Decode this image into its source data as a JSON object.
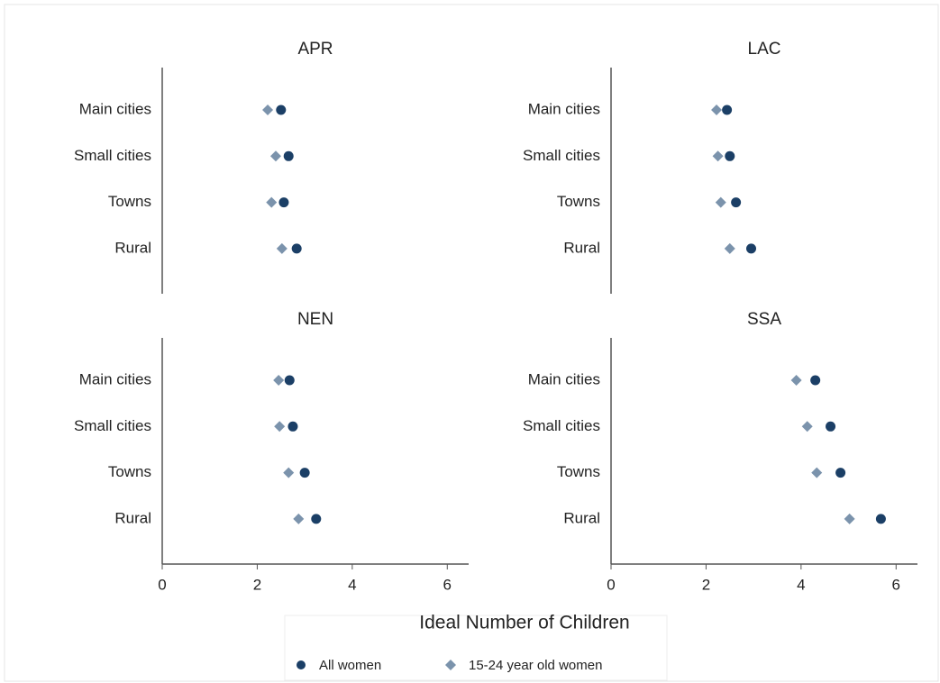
{
  "chart_data": {
    "type": "dot",
    "categories": [
      "Main cities",
      "Small cities",
      "Towns",
      "Rural"
    ],
    "series": [
      {
        "name": "All women",
        "color": "#1b3f66",
        "marker": "circle"
      },
      {
        "name": "15-24 year old women",
        "color": "#7b93ac",
        "marker": "diamond"
      }
    ],
    "panels": [
      {
        "title": "APR",
        "values": [
          [
            2.5,
            2.66,
            2.56,
            2.83
          ],
          [
            2.22,
            2.39,
            2.3,
            2.52
          ]
        ]
      },
      {
        "title": "LAC",
        "values": [
          [
            2.44,
            2.5,
            2.63,
            2.95
          ],
          [
            2.22,
            2.25,
            2.31,
            2.5
          ]
        ]
      },
      {
        "title": "NEN",
        "values": [
          [
            2.68,
            2.75,
            3.0,
            3.24
          ],
          [
            2.45,
            2.47,
            2.66,
            2.87
          ]
        ]
      },
      {
        "title": "SSA",
        "values": [
          [
            4.3,
            4.62,
            4.83,
            5.68
          ],
          [
            3.9,
            4.13,
            4.33,
            5.02
          ]
        ]
      }
    ],
    "xlabel": "Ideal Number of Children",
    "xlim": [
      0,
      6.45
    ],
    "xticks": [
      0,
      2,
      4,
      6
    ]
  }
}
